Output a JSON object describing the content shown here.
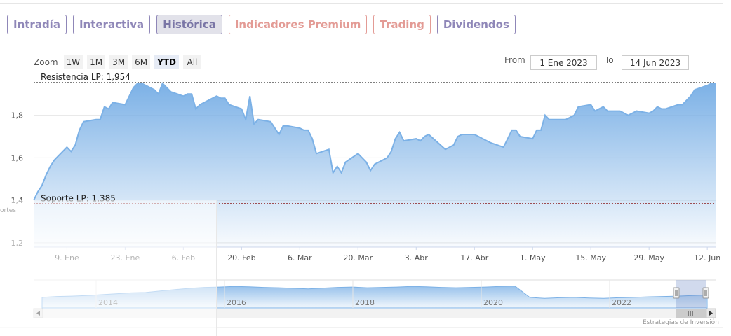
{
  "tabs": [
    {
      "label": "Intradía",
      "style": "normal"
    },
    {
      "label": "Interactiva",
      "style": "normal"
    },
    {
      "label": "Histórica",
      "style": "active"
    },
    {
      "label": "Indicadores Premium",
      "style": "premium"
    },
    {
      "label": "Trading",
      "style": "premium"
    },
    {
      "label": "Dividendos",
      "style": "normal"
    }
  ],
  "zoom": {
    "label": "Zoom",
    "buttons": [
      "1W",
      "1M",
      "3M",
      "6M",
      "YTD",
      "All"
    ],
    "selected": "YTD"
  },
  "range": {
    "from_label": "From",
    "from_value": "1 Ene 2023",
    "to_label": "To",
    "to_value": "14 Jun 2023"
  },
  "side_text": "ortes",
  "credit": "Estrategias de Inversión",
  "colors": {
    "line": "#7cb1e6",
    "fill_top": "#7cb1e6",
    "resistance": "#333333",
    "support": "#8b1a1a",
    "tab_border": "#8f87b8",
    "premium": "#e39b95"
  },
  "chart_data": {
    "type": "area",
    "x": [
      "2023-01-01",
      "2023-01-02",
      "2023-01-03",
      "2023-01-04",
      "2023-01-05",
      "2023-01-06",
      "2023-01-09",
      "2023-01-10",
      "2023-01-11",
      "2023-01-12",
      "2023-01-13",
      "2023-01-16",
      "2023-01-17",
      "2023-01-18",
      "2023-01-19",
      "2023-01-20",
      "2023-01-23",
      "2023-01-24",
      "2023-01-25",
      "2023-01-26",
      "2023-01-27",
      "2023-01-30",
      "2023-01-31",
      "2023-02-01",
      "2023-02-02",
      "2023-02-03",
      "2023-02-06",
      "2023-02-07",
      "2023-02-08",
      "2023-02-09",
      "2023-02-10",
      "2023-02-13",
      "2023-02-14",
      "2023-02-15",
      "2023-02-16",
      "2023-02-17",
      "2023-02-20",
      "2023-02-21",
      "2023-02-22",
      "2023-02-23",
      "2023-02-24",
      "2023-02-27",
      "2023-02-28",
      "2023-03-01",
      "2023-03-02",
      "2023-03-03",
      "2023-03-06",
      "2023-03-07",
      "2023-03-08",
      "2023-03-09",
      "2023-03-10",
      "2023-03-13",
      "2023-03-14",
      "2023-03-15",
      "2023-03-16",
      "2023-03-17",
      "2023-03-20",
      "2023-03-21",
      "2023-03-22",
      "2023-03-23",
      "2023-03-24",
      "2023-03-27",
      "2023-03-28",
      "2023-03-29",
      "2023-03-30",
      "2023-03-31",
      "2023-04-03",
      "2023-04-04",
      "2023-04-05",
      "2023-04-06",
      "2023-04-10",
      "2023-04-11",
      "2023-04-12",
      "2023-04-13",
      "2023-04-14",
      "2023-04-17",
      "2023-04-18",
      "2023-04-19",
      "2023-04-20",
      "2023-04-21",
      "2023-04-24",
      "2023-04-25",
      "2023-04-26",
      "2023-04-27",
      "2023-04-28",
      "2023-05-01",
      "2023-05-02",
      "2023-05-03",
      "2023-05-04",
      "2023-05-05",
      "2023-05-08",
      "2023-05-09",
      "2023-05-10",
      "2023-05-11",
      "2023-05-12",
      "2023-05-15",
      "2023-05-16",
      "2023-05-17",
      "2023-05-18",
      "2023-05-19",
      "2023-05-22",
      "2023-05-23",
      "2023-05-24",
      "2023-05-25",
      "2023-05-26",
      "2023-05-29",
      "2023-05-30",
      "2023-05-31",
      "2023-06-01",
      "2023-06-02",
      "2023-06-05",
      "2023-06-06",
      "2023-06-07",
      "2023-06-08",
      "2023-06-09",
      "2023-06-12",
      "2023-06-13",
      "2023-06-14"
    ],
    "y": [
      1.4,
      1.44,
      1.47,
      1.52,
      1.56,
      1.59,
      1.65,
      1.63,
      1.66,
      1.73,
      1.77,
      1.78,
      1.78,
      1.84,
      1.83,
      1.86,
      1.85,
      1.89,
      1.93,
      1.95,
      1.95,
      1.92,
      1.9,
      1.95,
      1.93,
      1.91,
      1.89,
      1.9,
      1.9,
      1.83,
      1.85,
      1.88,
      1.89,
      1.88,
      1.88,
      1.85,
      1.83,
      1.78,
      1.89,
      1.76,
      1.78,
      1.77,
      1.74,
      1.71,
      1.75,
      1.75,
      1.74,
      1.73,
      1.73,
      1.69,
      1.62,
      1.64,
      1.53,
      1.56,
      1.53,
      1.58,
      1.62,
      1.6,
      1.58,
      1.54,
      1.57,
      1.6,
      1.63,
      1.69,
      1.72,
      1.68,
      1.69,
      1.68,
      1.7,
      1.71,
      1.64,
      1.65,
      1.66,
      1.7,
      1.71,
      1.71,
      1.7,
      1.69,
      1.68,
      1.67,
      1.65,
      1.69,
      1.73,
      1.73,
      1.7,
      1.69,
      1.73,
      1.73,
      1.8,
      1.78,
      1.78,
      1.78,
      1.79,
      1.8,
      1.84,
      1.85,
      1.82,
      1.83,
      1.84,
      1.82,
      1.82,
      1.81,
      1.8,
      1.81,
      1.82,
      1.81,
      1.82,
      1.84,
      1.83,
      1.83,
      1.85,
      1.85,
      1.87,
      1.89,
      1.92,
      1.94,
      1.95,
      1.95
    ],
    "x_ticks": [
      "9. Ene",
      "23. Ene",
      "6. Feb",
      "20. Feb",
      "6. Mar",
      "20. Mar",
      "3. Abr",
      "17. Abr",
      "1. May",
      "15. May",
      "29. May",
      "12. Jun"
    ],
    "x_tick_dates": [
      "2023-01-09",
      "2023-01-23",
      "2023-02-06",
      "2023-02-20",
      "2023-03-06",
      "2023-03-20",
      "2023-04-03",
      "2023-04-17",
      "2023-05-01",
      "2023-05-15",
      "2023-05-29",
      "2023-06-12"
    ],
    "y_ticks": [
      "1,2",
      "1,4",
      "1,6",
      "1,8"
    ],
    "y_tick_values": [
      1.2,
      1.4,
      1.6,
      1.8
    ],
    "ylim": [
      1.18,
      1.97
    ],
    "grid": true,
    "resistance": {
      "label": "Resistencia LP: 1,954",
      "value": 1.954
    },
    "support": {
      "label": "Soporte LP: 1,385",
      "value": 1.385
    },
    "navigator": {
      "year_labels": [
        "2014",
        "2016",
        "2018",
        "2020",
        "2022"
      ],
      "profile": [
        0.35,
        0.4,
        0.42,
        0.45,
        0.5,
        0.55,
        0.6,
        0.62,
        0.7,
        0.78,
        0.85,
        0.9,
        0.92,
        0.95,
        0.93,
        0.9,
        0.88,
        0.85,
        0.82,
        0.86,
        0.9,
        0.92,
        0.88,
        0.9,
        0.92,
        0.95,
        0.93,
        0.9,
        0.88,
        0.9,
        0.92,
        0.95,
        0.97,
        0.35,
        0.3,
        0.33,
        0.35,
        0.32,
        0.3,
        0.33,
        0.35,
        0.38,
        0.4,
        0.42,
        0.45,
        0.48
      ]
    }
  }
}
